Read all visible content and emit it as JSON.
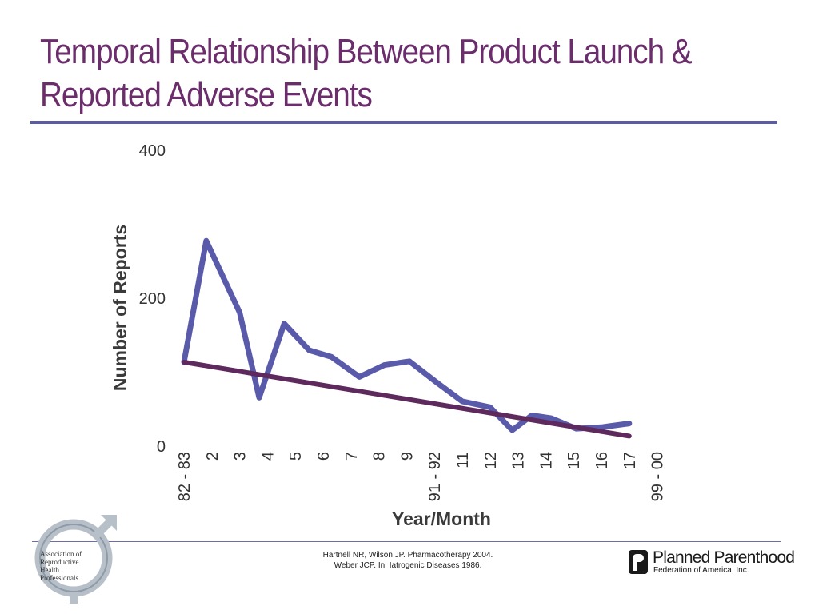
{
  "slide": {
    "title_line1": "Temporal Relationship Between Product Launch &",
    "title_line2": "Reported Adverse Events"
  },
  "chart_data": {
    "type": "line",
    "xlabel": "Year/Month",
    "ylabel": "Number of Reports",
    "ylim": [
      0,
      400
    ],
    "yticks": [
      "0",
      "200",
      "400"
    ],
    "categories": [
      "82 - 83",
      "2",
      "3",
      "4",
      "5",
      "6",
      "7",
      "8",
      "9",
      "91 - 92",
      "11",
      "12",
      "13",
      "14",
      "15",
      "16",
      "17",
      "99 - 00"
    ],
    "series": [
      {
        "color": "#5a5aaa",
        "x": [
          0,
          0.8,
          2,
          2.7,
          3.6,
          4.5,
          5.3,
          6.3,
          7.2,
          8.1,
          9.1,
          10,
          11,
          11.8,
          12.5,
          13.2,
          14.1,
          15,
          16
        ],
        "y": [
          118,
          282,
          185,
          70,
          170,
          134,
          125,
          98,
          114,
          119,
          90,
          65,
          57,
          26,
          46,
          42,
          28,
          30,
          35
        ]
      },
      {
        "color": "#5e2a5e",
        "x": [
          0,
          16
        ],
        "y": [
          118,
          18
        ]
      }
    ]
  },
  "footer": {
    "citation_line1": "Hartnell NR, Wilson JP. Pharmacotherapy 2004.",
    "citation_line2": "Weber JCP. In: Iatrogenic Diseases 1986.",
    "arhp_logo_text": [
      "Association of",
      "Reproductive",
      "Health",
      "Professionals"
    ],
    "pp_name": "Planned Parenthood",
    "pp_sub": "Federation of America, Inc."
  }
}
